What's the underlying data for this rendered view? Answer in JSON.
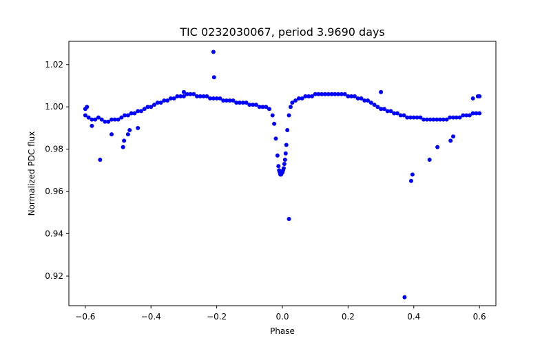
{
  "chart_data": {
    "type": "scatter",
    "title": "TIC 0232030067, period 3.9690 days",
    "xlabel": "Phase",
    "ylabel": "Normalized PDC flux",
    "xlim": [
      -0.65,
      0.65
    ],
    "ylim": [
      0.906,
      1.031
    ],
    "xticks": [
      -0.6,
      -0.4,
      -0.2,
      0.0,
      0.2,
      0.4,
      0.6
    ],
    "xtick_labels": [
      "−0.6",
      "−0.4",
      "−0.2",
      "0.0",
      "0.2",
      "0.4",
      "0.6"
    ],
    "yticks": [
      0.92,
      0.94,
      0.96,
      0.98,
      1.0,
      1.02
    ],
    "ytick_labels": [
      "0.92",
      "0.94",
      "0.96",
      "0.98",
      "1.00",
      "1.02"
    ],
    "grid": false,
    "legend": "none",
    "marker_color": "#0000ff",
    "series": [
      {
        "x": [
          -0.6,
          -0.59,
          -0.58,
          -0.57,
          -0.56,
          -0.55,
          -0.54,
          -0.53,
          -0.52,
          -0.51,
          -0.5,
          -0.49,
          -0.48,
          -0.47,
          -0.46,
          -0.45,
          -0.44,
          -0.43,
          -0.42,
          -0.41,
          -0.4,
          -0.39,
          -0.38,
          -0.37,
          -0.36,
          -0.35,
          -0.34,
          -0.33,
          -0.32,
          -0.31,
          -0.3,
          -0.29,
          -0.28,
          -0.27,
          -0.26,
          -0.25,
          -0.24,
          -0.23,
          -0.22,
          -0.21,
          -0.2,
          -0.19,
          -0.18,
          -0.17,
          -0.16,
          -0.15,
          -0.14,
          -0.13,
          -0.12,
          -0.11,
          -0.1,
          -0.09,
          -0.08,
          -0.07,
          -0.06,
          -0.05,
          -0.04,
          -0.03,
          -0.025,
          -0.02,
          -0.015,
          -0.012,
          -0.01,
          -0.008,
          -0.006,
          -0.004,
          -0.002,
          0.0,
          0.002,
          0.004,
          0.006,
          0.008,
          0.01,
          0.012,
          0.015,
          0.02,
          0.025,
          0.03,
          0.04,
          0.05,
          0.06,
          0.07,
          0.08,
          0.09,
          0.1,
          0.11,
          0.12,
          0.13,
          0.14,
          0.15,
          0.16,
          0.17,
          0.18,
          0.19,
          0.2,
          0.21,
          0.22,
          0.23,
          0.24,
          0.25,
          0.26,
          0.27,
          0.28,
          0.29,
          0.3,
          0.31,
          0.32,
          0.33,
          0.34,
          0.35,
          0.36,
          0.37,
          0.38,
          0.39,
          0.4,
          0.41,
          0.42,
          0.43,
          0.44,
          0.45,
          0.46,
          0.47,
          0.48,
          0.49,
          0.5,
          0.51,
          0.52,
          0.53,
          0.54,
          0.55,
          0.56,
          0.57,
          0.58,
          0.59,
          0.6,
          -0.555,
          -0.485,
          -0.482,
          -0.47,
          -0.465,
          -0.44,
          -0.21,
          -0.208,
          0.02,
          0.372,
          0.392,
          0.396,
          0.448,
          0.472,
          0.512,
          0.52,
          -0.52,
          -0.6,
          -0.58,
          0.58,
          0.6,
          0.595,
          -0.595,
          0.3,
          -0.3
        ],
        "y": [
          0.996,
          0.995,
          0.994,
          0.994,
          0.995,
          0.994,
          0.993,
          0.993,
          0.994,
          0.994,
          0.994,
          0.995,
          0.996,
          0.996,
          0.997,
          0.997,
          0.998,
          0.998,
          0.999,
          1.0,
          1.0,
          1.001,
          1.002,
          1.002,
          1.003,
          1.003,
          1.004,
          1.004,
          1.005,
          1.005,
          1.005,
          1.006,
          1.006,
          1.006,
          1.005,
          1.005,
          1.005,
          1.005,
          1.004,
          1.004,
          1.004,
          1.004,
          1.003,
          1.003,
          1.003,
          1.003,
          1.002,
          1.002,
          1.002,
          1.002,
          1.001,
          1.001,
          1.001,
          1.0,
          1.0,
          1.0,
          0.999,
          0.996,
          0.992,
          0.985,
          0.977,
          0.972,
          0.97,
          0.969,
          0.968,
          0.968,
          0.969,
          0.969,
          0.97,
          0.971,
          0.973,
          0.975,
          0.978,
          0.982,
          0.989,
          0.996,
          1.0,
          1.002,
          1.003,
          1.004,
          1.004,
          1.005,
          1.005,
          1.005,
          1.006,
          1.006,
          1.006,
          1.006,
          1.006,
          1.006,
          1.006,
          1.006,
          1.006,
          1.006,
          1.005,
          1.005,
          1.005,
          1.004,
          1.004,
          1.003,
          1.003,
          1.002,
          1.001,
          1.0,
          0.999,
          0.999,
          0.998,
          0.998,
          0.997,
          0.997,
          0.996,
          0.996,
          0.995,
          0.995,
          0.995,
          0.995,
          0.995,
          0.994,
          0.994,
          0.994,
          0.994,
          0.994,
          0.994,
          0.994,
          0.994,
          0.995,
          0.995,
          0.995,
          0.995,
          0.996,
          0.996,
          0.996,
          0.997,
          0.997,
          0.997,
          0.975,
          0.981,
          0.984,
          0.987,
          0.989,
          0.99,
          1.026,
          1.014,
          0.947,
          0.91,
          0.965,
          0.968,
          0.975,
          0.981,
          0.984,
          0.986,
          0.987,
          0.999,
          0.991,
          1.004,
          1.005,
          1.005,
          1.0,
          1.007,
          1.007
        ]
      }
    ]
  }
}
